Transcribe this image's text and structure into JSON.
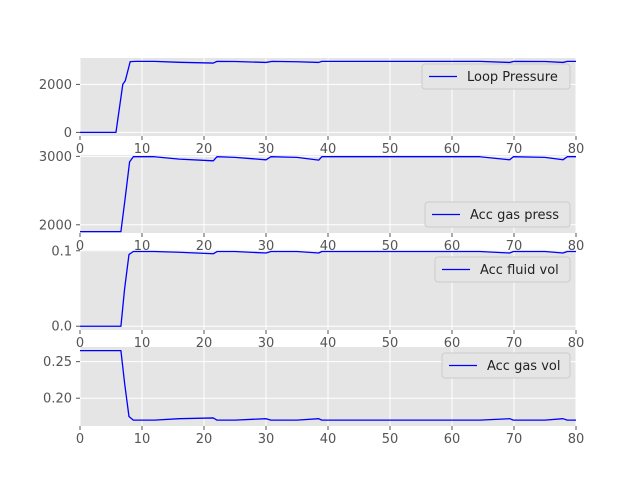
{
  "chart_data": [
    {
      "type": "line",
      "title": "",
      "xlabel": "",
      "ylabel": "",
      "xlim": [
        0,
        80
      ],
      "ylim": [
        -150,
        3100
      ],
      "xticks": [
        0,
        10,
        20,
        30,
        40,
        50,
        60,
        70,
        80
      ],
      "yticks": [
        0,
        2000
      ],
      "grid": true,
      "legend": "right",
      "series": [
        {
          "name": "Loop Pressure",
          "color": "#0000ff",
          "x": [
            0,
            5.8,
            6.9,
            7.3,
            8.1,
            9,
            12,
            16,
            21.5,
            22.1,
            25,
            30,
            31,
            35,
            38.5,
            39,
            50,
            64.5,
            69.3,
            70,
            75,
            77.9,
            78.6,
            80
          ],
          "y": [
            0,
            0,
            2000,
            2150,
            2950,
            2960,
            2960,
            2920,
            2890,
            2960,
            2955,
            2915,
            2960,
            2945,
            2915,
            2960,
            2960,
            2960,
            2915,
            2960,
            2955,
            2915,
            2960,
            2960
          ]
        }
      ]
    },
    {
      "type": "line",
      "title": "",
      "xlabel": "",
      "ylabel": "",
      "xlim": [
        0,
        80
      ],
      "ylim": [
        1880,
        3020
      ],
      "xticks": [
        0,
        10,
        20,
        30,
        40,
        50,
        60,
        70,
        80
      ],
      "yticks": [
        2000,
        3000
      ],
      "grid": true,
      "legend": "lower right",
      "series": [
        {
          "name": "Acc gas press",
          "color": "#0000ff",
          "x": [
            0,
            6.6,
            7.3,
            8,
            8.6,
            12,
            16,
            21.5,
            22.1,
            25,
            30,
            30.8,
            35,
            38.5,
            39,
            50,
            64.5,
            69.3,
            69.9,
            75,
            77.9,
            78.6,
            80
          ],
          "y": [
            1900,
            1900,
            2400,
            2920,
            2995,
            2995,
            2960,
            2935,
            2995,
            2985,
            2950,
            2995,
            2985,
            2945,
            2995,
            2995,
            2995,
            2950,
            2995,
            2985,
            2950,
            2995,
            2995
          ]
        }
      ]
    },
    {
      "type": "line",
      "title": "",
      "xlabel": "",
      "ylabel": "",
      "xlim": [
        0,
        80
      ],
      "ylim": [
        -0.005,
        0.101
      ],
      "xticks": [
        0,
        10,
        20,
        30,
        40,
        50,
        60,
        70,
        80
      ],
      "yticks": [
        0.0,
        0.1
      ],
      "grid": true,
      "legend": "upper right",
      "series": [
        {
          "name": "Acc fluid vol",
          "color": "#0000ff",
          "x": [
            0,
            6.6,
            7.2,
            7.9,
            8.6,
            12,
            16,
            21.5,
            22.1,
            25,
            30,
            30.8,
            35,
            38.5,
            39,
            50,
            64.5,
            69.3,
            69.9,
            75,
            77.9,
            78.6,
            80
          ],
          "y": [
            0,
            0,
            0.05,
            0.095,
            0.099,
            0.099,
            0.098,
            0.096,
            0.099,
            0.099,
            0.097,
            0.099,
            0.099,
            0.097,
            0.099,
            0.099,
            0.099,
            0.097,
            0.099,
            0.099,
            0.097,
            0.099,
            0.099
          ]
        }
      ]
    },
    {
      "type": "line",
      "title": "",
      "xlabel": "",
      "ylabel": "",
      "xlim": [
        0,
        80
      ],
      "ylim": [
        0.162,
        0.27
      ],
      "xticks": [
        0,
        10,
        20,
        30,
        40,
        50,
        60,
        70,
        80
      ],
      "yticks": [
        0.2,
        0.25
      ],
      "grid": true,
      "legend": "upper right",
      "series": [
        {
          "name": "Acc gas vol",
          "color": "#0000ff",
          "x": [
            0,
            6.6,
            7.2,
            7.9,
            8.6,
            12,
            16,
            21.5,
            22.1,
            25,
            30,
            30.8,
            35,
            38.5,
            39,
            50,
            64.5,
            69.3,
            69.9,
            75,
            77.9,
            78.6,
            80
          ],
          "y": [
            0.265,
            0.265,
            0.22,
            0.175,
            0.17,
            0.17,
            0.172,
            0.173,
            0.17,
            0.17,
            0.172,
            0.17,
            0.17,
            0.172,
            0.17,
            0.17,
            0.17,
            0.172,
            0.17,
            0.17,
            0.172,
            0.17,
            0.17
          ]
        }
      ]
    }
  ]
}
